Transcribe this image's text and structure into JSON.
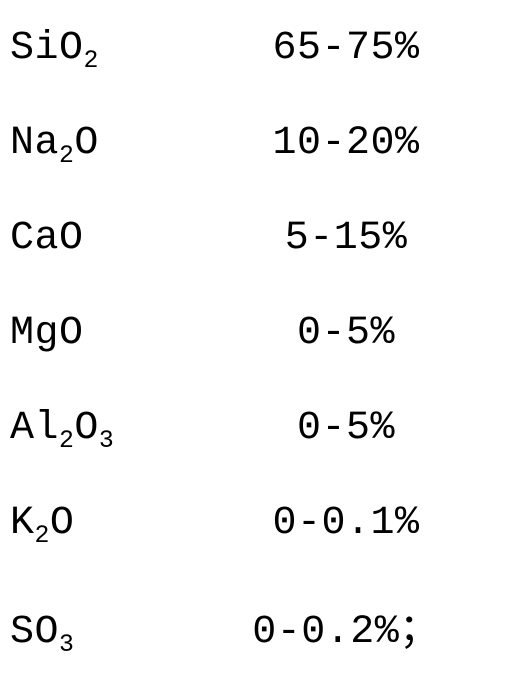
{
  "composition": {
    "text_color": "#000000",
    "background_color": "#ffffff",
    "font_family": "Courier New, monospace",
    "font_size_pt": 30,
    "subscript_scale": 0.62,
    "rows": [
      {
        "base": "SiO",
        "sub": "2",
        "pre_sub": "",
        "value": "65-75%"
      },
      {
        "base": "Na",
        "sub": "2",
        "post": "O",
        "value": "10-20%"
      },
      {
        "base": "CaO",
        "sub": "",
        "post": "",
        "value": "5-15%"
      },
      {
        "base": "MgO",
        "sub": "",
        "post": "",
        "value": "0-5%"
      },
      {
        "base": "Al",
        "sub": "2",
        "post": "O",
        "post_sub": "3",
        "value": "0-5%"
      },
      {
        "base": "K",
        "sub": "2",
        "post": "O",
        "value": "0-0.1%"
      },
      {
        "base": "SO",
        "sub": "3",
        "post": "",
        "value": "0-0.2%；"
      }
    ]
  }
}
